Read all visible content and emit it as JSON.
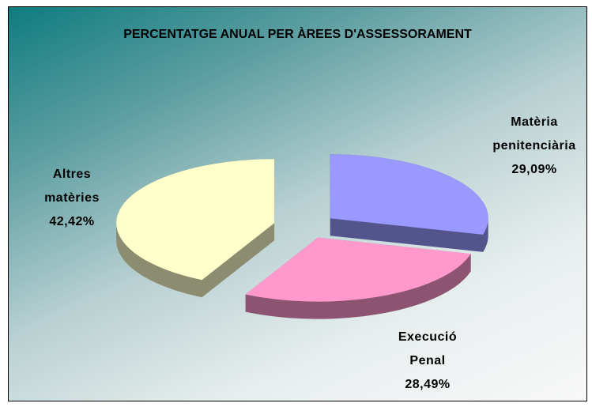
{
  "chart_data": {
    "type": "pie",
    "title": "PERCENTATGE ANUAL PER ÀREES D'ASSESSORAMENT",
    "categories": [
      "Matèria penitenciària",
      "Execució Penal",
      "Altres matèries"
    ],
    "values": [
      29.09,
      28.49,
      42.42
    ],
    "value_labels": [
      "29,09%",
      "28,49%",
      "42,42%"
    ],
    "colors": [
      "#9999ff",
      "#ff99cc",
      "#ffffcc"
    ]
  }
}
